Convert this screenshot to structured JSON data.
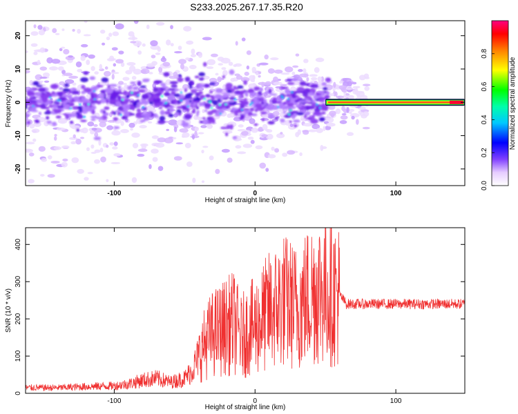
{
  "title": "S233.2025.267.17.35.R20",
  "chart_data": [
    {
      "type": "heatmap",
      "title": "S233.2025.267.17.35.R20",
      "xlabel": "Height of straight line (km)",
      "ylabel": "Frequency (Hz)",
      "xlim": [
        -163,
        149
      ],
      "ylim": [
        -25,
        24.5
      ],
      "xticks": [
        -100,
        0,
        100
      ],
      "xtick_labels": [
        "-100",
        "0",
        "100"
      ],
      "yticks": [
        -20,
        -10,
        0,
        10,
        20
      ],
      "ytick_labels": [
        "-20",
        "-10",
        "0",
        "10",
        "20"
      ],
      "colorbar": {
        "label": "Normalized spectral amplitude",
        "range": [
          0,
          1
        ],
        "ticks": [
          0,
          0.2,
          0.4,
          0.6,
          0.8
        ],
        "tick_labels": [
          "0.0",
          "0.2",
          "0.4",
          "0.6",
          "0.8"
        ],
        "colormap": "rainbow"
      },
      "features": {
        "tone_frequency_hz": 0,
        "tone_start_km": 50,
        "tone_end_km": 149,
        "noise_region_km": [
          -163,
          50
        ]
      }
    },
    {
      "type": "line",
      "xlabel": "Height of straight line (km)",
      "ylabel": "SNR (10 * v/v)",
      "xlim": [
        -163,
        149
      ],
      "ylim": [
        0,
        445
      ],
      "xticks": [
        -100,
        0,
        100
      ],
      "xtick_labels": [
        "-100",
        "0",
        "100"
      ],
      "yticks": [
        0,
        100,
        200,
        300,
        400
      ],
      "ytick_labels": [
        "0",
        "100",
        "200",
        "300",
        "400"
      ],
      "series": [
        {
          "name": "SNR",
          "color": "#f03030",
          "x": [
            -163,
            -140,
            -120,
            -100,
            -90,
            -80,
            -70,
            -60,
            -50,
            -45,
            -40,
            -35,
            -30,
            -25,
            -20,
            -15,
            -10,
            -5,
            0,
            5,
            10,
            15,
            20,
            25,
            30,
            35,
            40,
            45,
            50,
            55,
            60,
            65,
            70,
            80,
            90,
            100,
            110,
            120,
            130,
            140,
            149
          ],
          "values": [
            15,
            15,
            18,
            20,
            25,
            35,
            40,
            30,
            40,
            60,
            100,
            140,
            160,
            170,
            180,
            190,
            150,
            170,
            180,
            200,
            220,
            230,
            250,
            240,
            230,
            250,
            270,
            280,
            280,
            270,
            265,
            240,
            240,
            240,
            240,
            240,
            240,
            240,
            240,
            240,
            240
          ]
        }
      ]
    }
  ]
}
